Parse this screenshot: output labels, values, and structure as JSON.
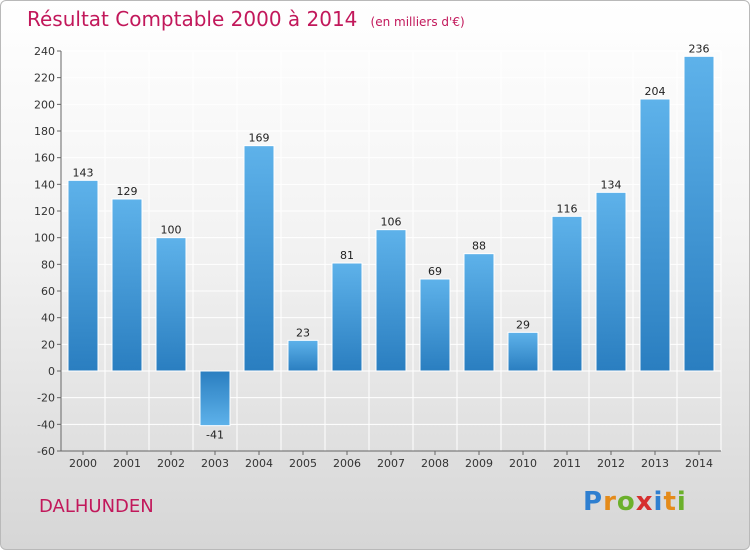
{
  "title": "Résultat Comptable 2000 à 2014",
  "subtitle": "(en milliers d'€)",
  "commune": "DALHUNDEN",
  "logo": {
    "text": "Proxiti",
    "letters": [
      "P",
      "r",
      "o",
      "x",
      "i",
      "t",
      "i"
    ],
    "colors": [
      "#2e7fd0",
      "#e48b1a",
      "#6bb02b",
      "#d62f2f",
      "#2e7fd0",
      "#e48b1a",
      "#6bb02b"
    ]
  },
  "colors": {
    "bar_top": "#5eb2ea",
    "bar_bottom": "#2a7ec0",
    "grid": "#ffffff",
    "title": "#c2185b"
  },
  "chart_data": {
    "type": "bar",
    "categories": [
      "2000",
      "2001",
      "2002",
      "2003",
      "2004",
      "2005",
      "2006",
      "2007",
      "2008",
      "2009",
      "2010",
      "2011",
      "2012",
      "2013",
      "2014"
    ],
    "values": [
      143,
      129,
      100,
      -41,
      169,
      23,
      81,
      106,
      69,
      88,
      29,
      116,
      134,
      204,
      236
    ],
    "ylim": [
      -60,
      240
    ],
    "yticks": [
      -60,
      -40,
      -20,
      0,
      20,
      40,
      60,
      80,
      100,
      120,
      140,
      160,
      180,
      200,
      220,
      240
    ],
    "title": "Résultat Comptable 2000 à 2014",
    "xlabel": "",
    "ylabel": "",
    "grid": true
  }
}
